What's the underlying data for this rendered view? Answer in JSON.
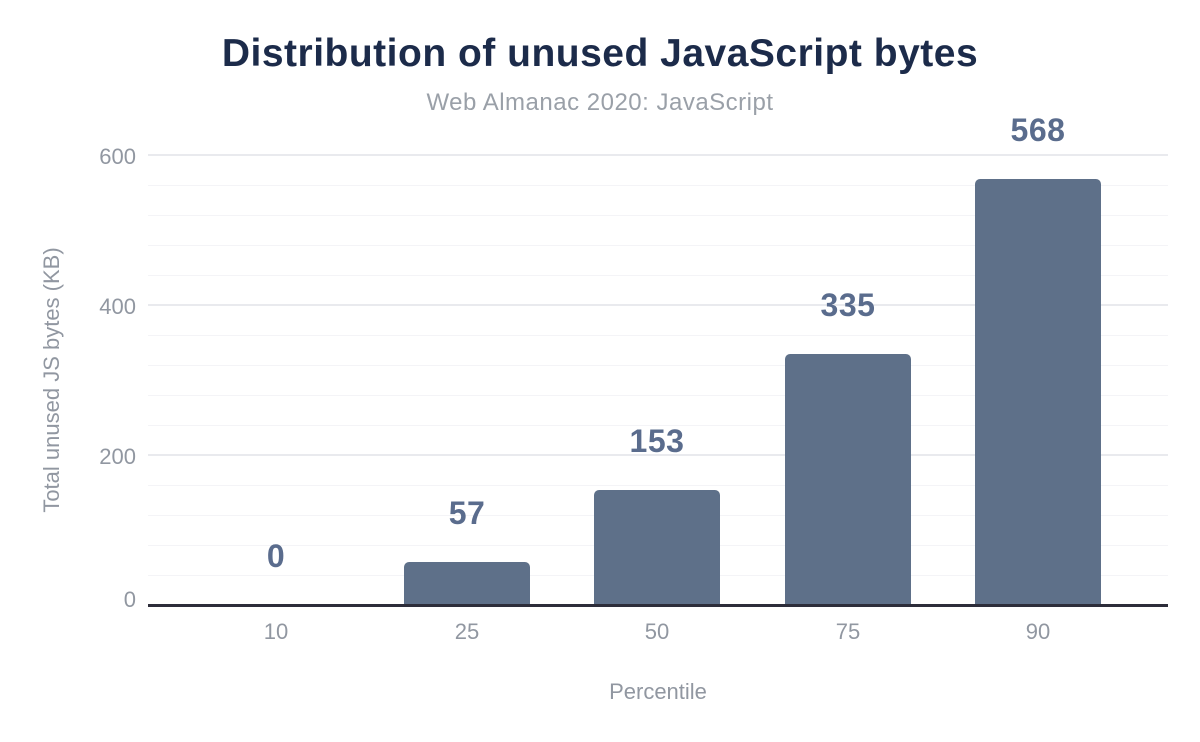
{
  "chart_data": {
    "type": "bar",
    "title": "Distribution of unused JavaScript bytes",
    "subtitle": "Web Almanac 2020: JavaScript",
    "categories": [
      "10",
      "25",
      "50",
      "75",
      "90"
    ],
    "values": [
      0,
      57,
      153,
      335,
      568
    ],
    "value_labels": [
      "0",
      "57",
      "153",
      "335",
      "568"
    ],
    "xlabel": "Percentile",
    "ylabel": "Total unused JS bytes (KB)",
    "ylim": [
      0,
      600
    ],
    "yticks": [
      0,
      200,
      400,
      600
    ],
    "minor_grid_step": 40,
    "grid": true,
    "legend_position": "none",
    "colors": {
      "background": "#ffffff",
      "title": "#1c2b4a",
      "subtitle": "#9aa0a8",
      "bar": "#5e7089",
      "value_label": "#5a6c8d",
      "tick_label": "#9197a1",
      "axis_title": "#9197a1",
      "baseline": "#2d2d3a",
      "grid_major": "#e9eaee",
      "grid_minor": "#f4f4f7"
    }
  }
}
